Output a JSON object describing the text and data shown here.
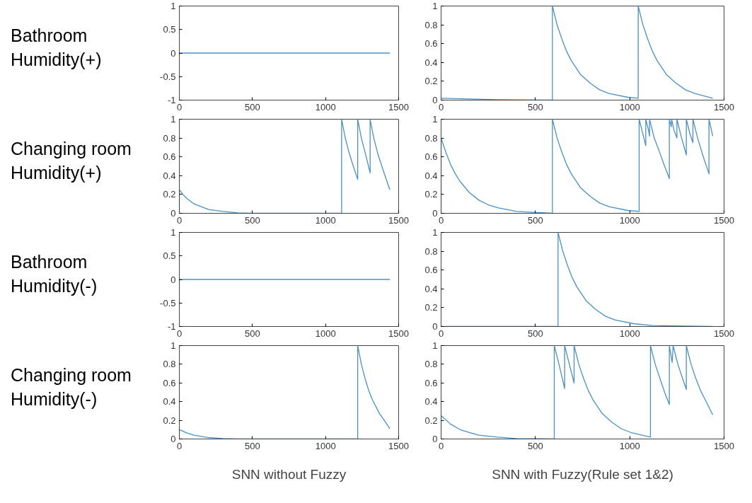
{
  "chart_data": [
    {
      "type": "line",
      "ylabel": "Bathroom\nHumidity(+)",
      "xlim": [
        0,
        1500
      ],
      "xticks": [
        0,
        500,
        1000,
        1500
      ],
      "ylim": [
        -1,
        1
      ],
      "yticks": [
        -1,
        -0.5,
        0,
        0.5,
        1
      ],
      "x": [
        0,
        1440
      ],
      "series": [
        {
          "color": "#4a90c8",
          "values": [
            0,
            0
          ]
        }
      ]
    },
    {
      "type": "line",
      "xlim": [
        0,
        1500
      ],
      "xticks": [
        0,
        500,
        1000,
        1500
      ],
      "ylim": [
        0,
        1
      ],
      "yticks": [
        0,
        0.2,
        0.4,
        0.6,
        0.8,
        1
      ],
      "x": [
        0,
        300,
        590,
        590,
        615,
        640,
        665,
        690,
        740,
        790,
        840,
        890,
        990,
        1045,
        1045,
        1070,
        1095,
        1120,
        1145,
        1195,
        1245,
        1295,
        1345,
        1440
      ],
      "series": [
        {
          "color": "#4a90c8",
          "values": [
            0.02,
            0.005,
            0,
            1,
            0.8,
            0.65,
            0.52,
            0.42,
            0.27,
            0.18,
            0.11,
            0.07,
            0.03,
            0.02,
            1,
            0.8,
            0.65,
            0.52,
            0.42,
            0.27,
            0.18,
            0.11,
            0.07,
            0.02
          ]
        }
      ]
    },
    {
      "type": "line",
      "ylabel": "Changing room\nHumidity(+)",
      "xlim": [
        0,
        1500
      ],
      "xticks": [
        0,
        500,
        1000,
        1500
      ],
      "ylim": [
        0,
        1
      ],
      "yticks": [
        0,
        0.2,
        0.4,
        0.6,
        0.8,
        1
      ],
      "x": [
        0,
        0,
        25,
        50,
        75,
        100,
        150,
        200,
        300,
        400,
        500,
        1110,
        1110,
        1135,
        1160,
        1190,
        1220,
        1220,
        1245,
        1275,
        1305,
        1305,
        1330,
        1360,
        1400,
        1440
      ],
      "series": [
        {
          "color": "#4a90c8",
          "values": [
            0,
            0.25,
            0.2,
            0.16,
            0.13,
            0.1,
            0.07,
            0.04,
            0.02,
            0.005,
            0,
            0,
            1,
            0.8,
            0.65,
            0.5,
            0.36,
            1,
            0.8,
            0.62,
            0.43,
            1,
            0.8,
            0.62,
            0.43,
            0.25
          ]
        }
      ]
    },
    {
      "type": "line",
      "xlim": [
        0,
        1500
      ],
      "xticks": [
        0,
        500,
        1000,
        1500
      ],
      "ylim": [
        0,
        1
      ],
      "yticks": [
        0,
        0.2,
        0.4,
        0.6,
        0.8,
        1
      ],
      "x": [
        0,
        0,
        25,
        50,
        75,
        100,
        150,
        200,
        250,
        300,
        400,
        590,
        590,
        615,
        640,
        665,
        690,
        740,
        790,
        840,
        890,
        990,
        1050,
        1050,
        1075,
        1085,
        1085,
        1100,
        1105,
        1105,
        1130,
        1160,
        1185,
        1210,
        1210,
        1220,
        1222,
        1235,
        1250,
        1250,
        1275,
        1300,
        1300,
        1320,
        1335,
        1335,
        1360,
        1390,
        1420,
        1420,
        1440
      ],
      "series": [
        {
          "color": "#4a90c8",
          "values": [
            0,
            0.8,
            0.65,
            0.52,
            0.42,
            0.34,
            0.22,
            0.14,
            0.09,
            0.06,
            0.02,
            0,
            1,
            0.8,
            0.65,
            0.52,
            0.42,
            0.27,
            0.18,
            0.11,
            0.07,
            0.03,
            0.02,
            1,
            0.8,
            0.72,
            1,
            0.88,
            0.82,
            1,
            0.8,
            0.64,
            0.5,
            0.37,
            1,
            0.92,
            1,
            0.88,
            0.8,
            1,
            0.8,
            0.62,
            1,
            0.84,
            0.75,
            1,
            0.8,
            0.6,
            0.42,
            1,
            0.82
          ]
        }
      ]
    },
    {
      "type": "line",
      "ylabel": "Bathroom\nHumidity(-)",
      "xlim": [
        0,
        1500
      ],
      "xticks": [
        0,
        500,
        1000,
        1500
      ],
      "ylim": [
        -1,
        1
      ],
      "yticks": [
        -1,
        -0.5,
        0,
        0.5,
        1
      ],
      "x": [
        0,
        1440
      ],
      "series": [
        {
          "color": "#4a90c8",
          "values": [
            0,
            0
          ]
        }
      ]
    },
    {
      "type": "line",
      "xlim": [
        0,
        1500
      ],
      "xticks": [
        0,
        500,
        1000,
        1500
      ],
      "ylim": [
        0,
        1
      ],
      "yticks": [
        0,
        0.2,
        0.4,
        0.6,
        0.8,
        1
      ],
      "x": [
        0,
        620,
        620,
        645,
        670,
        695,
        720,
        770,
        820,
        870,
        920,
        1020,
        1120,
        1440
      ],
      "series": [
        {
          "color": "#4a90c8",
          "values": [
            0,
            0,
            1,
            0.8,
            0.65,
            0.52,
            0.42,
            0.27,
            0.18,
            0.11,
            0.07,
            0.03,
            0.01,
            0
          ]
        }
      ]
    },
    {
      "type": "line",
      "ylabel": "Changing room\nHumidity(-)",
      "xlabel": "SNN without Fuzzy",
      "xlim": [
        0,
        1500
      ],
      "xticks": [
        0,
        500,
        1000,
        1500
      ],
      "ylim": [
        0,
        1
      ],
      "yticks": [
        0,
        0.2,
        0.4,
        0.6,
        0.8,
        1
      ],
      "x": [
        0,
        0,
        50,
        100,
        200,
        300,
        400,
        1220,
        1220,
        1245,
        1270,
        1295,
        1320,
        1370,
        1410,
        1440
      ],
      "series": [
        {
          "color": "#4a90c8",
          "values": [
            0,
            0.1,
            0.065,
            0.04,
            0.015,
            0.005,
            0,
            0,
            1,
            0.8,
            0.65,
            0.52,
            0.42,
            0.27,
            0.18,
            0.11
          ]
        }
      ]
    },
    {
      "type": "line",
      "xlabel": "SNN with Fuzzy(Rule set 1&2)",
      "xlim": [
        0,
        1500
      ],
      "xticks": [
        0,
        500,
        1000,
        1500
      ],
      "ylim": [
        0,
        1
      ],
      "yticks": [
        0,
        0.2,
        0.4,
        0.6,
        0.8,
        1
      ],
      "x": [
        0,
        0,
        50,
        100,
        150,
        200,
        300,
        400,
        600,
        600,
        625,
        655,
        655,
        680,
        705,
        705,
        730,
        755,
        780,
        805,
        855,
        905,
        955,
        1005,
        1110,
        1110,
        1135,
        1160,
        1185,
        1210,
        1210,
        1225,
        1230,
        1255,
        1280,
        1300,
        1300,
        1325,
        1350,
        1375,
        1400,
        1440
      ],
      "series": [
        {
          "color": "#4a90c8",
          "values": [
            0,
            0.25,
            0.16,
            0.1,
            0.07,
            0.04,
            0.02,
            0.005,
            0,
            1,
            0.8,
            0.54,
            1,
            0.8,
            0.6,
            1,
            0.8,
            0.65,
            0.52,
            0.42,
            0.27,
            0.18,
            0.11,
            0.07,
            0.02,
            1,
            0.8,
            0.65,
            0.5,
            0.37,
            1,
            0.82,
            1,
            0.8,
            0.65,
            0.53,
            1,
            0.8,
            0.65,
            0.52,
            0.42,
            0.26
          ]
        }
      ]
    }
  ]
}
